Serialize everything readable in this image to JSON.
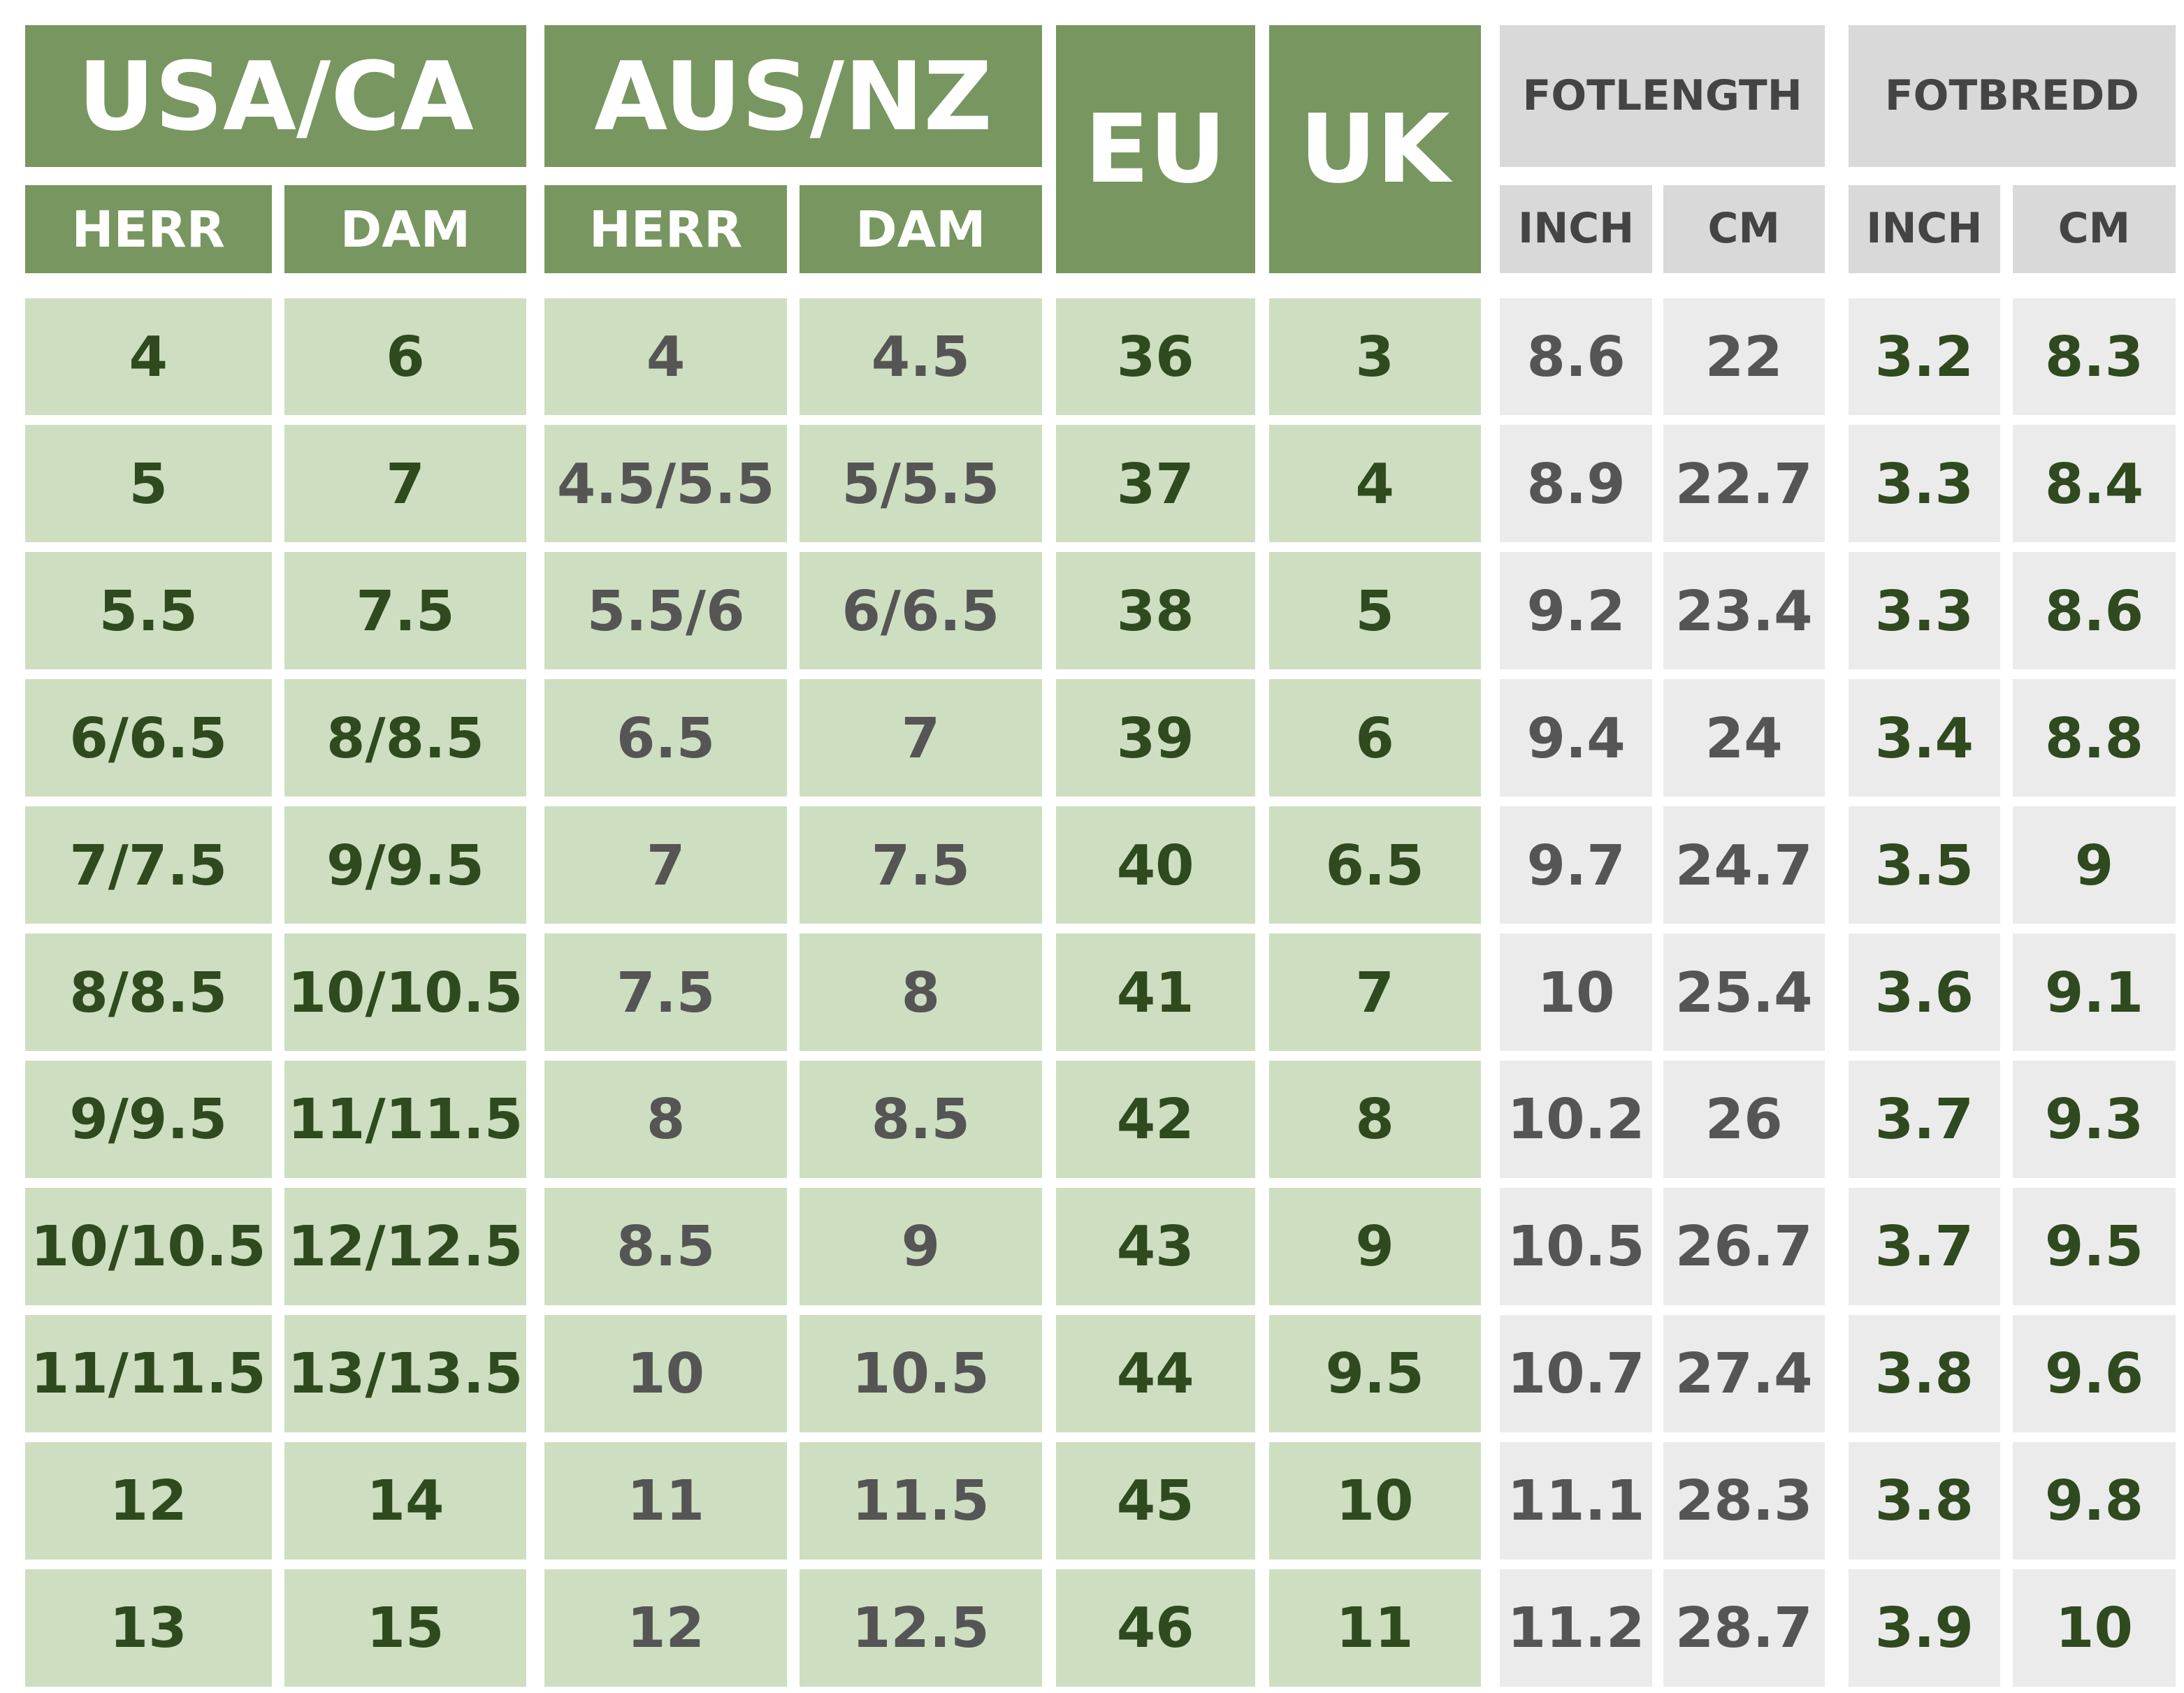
{
  "header": {
    "groups": [
      {
        "label": "USA/CA",
        "sub": [
          "HERR",
          "DAM"
        ]
      },
      {
        "label": "AUS/NZ",
        "sub": [
          "HERR",
          "DAM"
        ]
      },
      {
        "label": "EU"
      },
      {
        "label": "UK"
      },
      {
        "label": "FOTLENGTH",
        "sub": [
          "INCH",
          "CM"
        ]
      },
      {
        "label": "FOTBREDD",
        "sub": [
          "INCH",
          "CM"
        ]
      }
    ]
  },
  "table": {
    "rows": [
      [
        "4",
        "6",
        "4",
        "4.5",
        "36",
        "3",
        "8.6",
        "22",
        "3.2",
        "8.3"
      ],
      [
        "5",
        "7",
        "4.5/5.5",
        "5/5.5",
        "37",
        "4",
        "8.9",
        "22.7",
        "3.3",
        "8.4"
      ],
      [
        "5.5",
        "7.5",
        "5.5/6",
        "6/6.5",
        "38",
        "5",
        "9.2",
        "23.4",
        "3.3",
        "8.6"
      ],
      [
        "6/6.5",
        "8/8.5",
        "6.5",
        "7",
        "39",
        "6",
        "9.4",
        "24",
        "3.4",
        "8.8"
      ],
      [
        "7/7.5",
        "9/9.5",
        "7",
        "7.5",
        "40",
        "6.5",
        "9.7",
        "24.7",
        "3.5",
        "9"
      ],
      [
        "8/8.5",
        "10/10.5",
        "7.5",
        "8",
        "41",
        "7",
        "10",
        "25.4",
        "3.6",
        "9.1"
      ],
      [
        "9/9.5",
        "11/11.5",
        "8",
        "8.5",
        "42",
        "8",
        "10.2",
        "26",
        "3.7",
        "9.3"
      ],
      [
        "10/10.5",
        "12/12.5",
        "8.5",
        "9",
        "43",
        "9",
        "10.5",
        "26.7",
        "3.7",
        "9.5"
      ],
      [
        "11/11.5",
        "13/13.5",
        "10",
        "10.5",
        "44",
        "9.5",
        "10.7",
        "27.4",
        "3.8",
        "9.6"
      ],
      [
        "12",
        "14",
        "11",
        "11.5",
        "45",
        "10",
        "11.1",
        "28.3",
        "3.8",
        "9.8"
      ],
      [
        "13",
        "15",
        "12",
        "12.5",
        "46",
        "11",
        "11.2",
        "28.7",
        "3.9",
        "10"
      ]
    ]
  }
}
